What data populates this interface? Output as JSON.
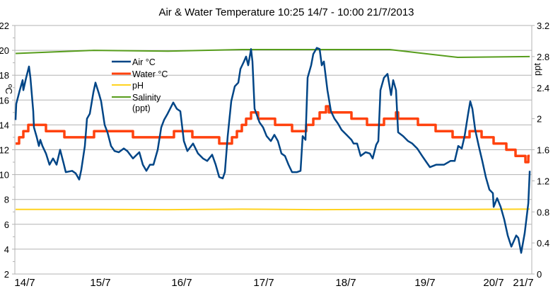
{
  "chart_data": {
    "type": "line",
    "title": "Air & Water Temperature 10:25 14/7 - 10:00 21/7/2013",
    "ylabel_left": "ºC",
    "ylabel_right": "ppt",
    "ylim_left": [
      2,
      22
    ],
    "ylim_right": [
      0,
      3.2
    ],
    "yticks_left": [
      "2",
      "4",
      "6",
      "8",
      "10",
      "12",
      "14",
      "16",
      "18",
      "20",
      "22"
    ],
    "yticks_right": [
      "0",
      "0.4",
      "0.8",
      "1.2",
      "1.6",
      "2",
      "2.4",
      "2.8",
      "3.2"
    ],
    "xticks": [
      "14/7",
      "15/7",
      "16/7",
      "17/7",
      "18/7",
      "19/7",
      "20/7",
      "21/7"
    ],
    "grid": true,
    "legend_position": "top-left inside",
    "colors": {
      "air": "#004586",
      "water": "#ff420e",
      "ph": "#ffd320",
      "salinity": "#579d1c",
      "grid": "#b3b3b3"
    },
    "series": [
      {
        "name": "Air °C",
        "axis": "left",
        "style": "line",
        "points": [
          [
            "14/7 10:39",
            14.4
          ],
          [
            "14/7 10:52",
            15.7
          ],
          [
            "14/7 12:01",
            16.8
          ],
          [
            "14/7 12:56",
            17.6
          ],
          [
            "14/7 13:10",
            16.8
          ],
          [
            "14/7 14:05",
            17.8
          ],
          [
            "14/7 15:00",
            18.7
          ],
          [
            "14/7 15:28",
            17.8
          ],
          [
            "14/7 16:23",
            15.1
          ],
          [
            "14/7 16:36",
            13.8
          ],
          [
            "14/7 17:31",
            13.0
          ],
          [
            "14/7 18:13",
            12.3
          ],
          [
            "14/7 18:40",
            12.8
          ],
          [
            "14/7 19:21",
            12.3
          ],
          [
            "14/7 20:30",
            11.7
          ],
          [
            "14/7 21:39",
            10.8
          ],
          [
            "14/7 22:48",
            11.3
          ],
          [
            "14/7 23:57",
            10.8
          ],
          [
            "15/7 01:05",
            12.0
          ],
          [
            "15/7 02:14",
            10.9
          ],
          [
            "15/7 02:55",
            10.2
          ],
          [
            "15/7 04:59",
            10.3
          ],
          [
            "15/7 06:08",
            10.1
          ],
          [
            "15/7 07:17",
            9.6
          ],
          [
            "15/7 07:58",
            10.4
          ],
          [
            "15/7 09:07",
            12.3
          ],
          [
            "15/7 09:48",
            14.5
          ],
          [
            "15/7 10:43",
            14.9
          ],
          [
            "15/7 11:52",
            16.6
          ],
          [
            "15/7 12:33",
            17.4
          ],
          [
            "15/7 13:42",
            16.5
          ],
          [
            "15/7 14:23",
            15.9
          ],
          [
            "15/7 15:32",
            14.0
          ],
          [
            "15/7 16:27",
            13.4
          ],
          [
            "15/7 17:36",
            12.3
          ],
          [
            "15/7 18:44",
            11.9
          ],
          [
            "15/7 20:07",
            11.8
          ],
          [
            "15/7 21:43",
            12.1
          ],
          [
            "15/7 22:52",
            11.9
          ],
          [
            "16/7 00:42",
            11.3
          ],
          [
            "16/7 02:46",
            11.8
          ],
          [
            "16/7 03:55",
            10.8
          ],
          [
            "16/7 05:03",
            10.3
          ],
          [
            "16/7 06:12",
            10.8
          ],
          [
            "16/7 07:21",
            10.8
          ],
          [
            "16/7 08:44",
            12.0
          ],
          [
            "16/7 09:52",
            13.8
          ],
          [
            "16/7 10:47",
            14.4
          ],
          [
            "16/7 11:56",
            14.9
          ],
          [
            "16/7 13:46",
            15.8
          ],
          [
            "16/7 14:55",
            15.3
          ],
          [
            "16/7 16:04",
            15.1
          ],
          [
            "16/7 17:12",
            12.7
          ],
          [
            "16/7 18:21",
            11.9
          ],
          [
            "16/7 20:11",
            12.5
          ],
          [
            "16/7 21:48",
            11.7
          ],
          [
            "16/7 23:24",
            11.3
          ],
          [
            "17/7 00:46",
            11.1
          ],
          [
            "17/7 02:23",
            11.6
          ],
          [
            "17/7 03:31",
            10.8
          ],
          [
            "17/7 04:40",
            9.8
          ],
          [
            "17/7 05:49",
            9.7
          ],
          [
            "17/7 06:30",
            10.2
          ],
          [
            "17/7 07:25",
            13.1
          ],
          [
            "17/7 08:34",
            15.9
          ],
          [
            "17/7 09:43",
            17.1
          ],
          [
            "17/7 10:52",
            17.4
          ],
          [
            "17/7 11:33",
            18.5
          ],
          [
            "17/7 12:42",
            19.1
          ],
          [
            "17/7 13:23",
            19.5
          ],
          [
            "17/7 14:04",
            18.8
          ],
          [
            "17/7 14:59",
            20.1
          ],
          [
            "17/7 15:27",
            19.1
          ],
          [
            "17/7 16:08",
            15.3
          ],
          [
            "17/7 17:44",
            14.2
          ],
          [
            "17/7 18:53",
            13.8
          ],
          [
            "17/7 20:02",
            13.1
          ],
          [
            "17/7 21:24",
            12.7
          ],
          [
            "17/7 22:33",
            13.2
          ],
          [
            "17/7 23:42",
            12.7
          ],
          [
            "18/7 00:51",
            11.7
          ],
          [
            "18/7 02:00",
            11.5
          ],
          [
            "18/7 03:08",
            10.8
          ],
          [
            "18/7 04:17",
            10.2
          ],
          [
            "18/7 05:53",
            10.2
          ],
          [
            "18/7 07:02",
            10.3
          ],
          [
            "18/7 07:43",
            13.1
          ],
          [
            "18/7 08:38",
            12.8
          ],
          [
            "18/7 09:20",
            17.8
          ],
          [
            "18/7 10:28",
            18.8
          ],
          [
            "18/7 11:10",
            19.7
          ],
          [
            "18/7 12:18",
            20.2
          ],
          [
            "18/7 13:14",
            20.1
          ],
          [
            "18/7 13:55",
            18.8
          ],
          [
            "18/7 14:36",
            19.1
          ],
          [
            "18/7 15:45",
            16.8
          ],
          [
            "18/7 16:54",
            15.1
          ],
          [
            "18/7 18:03",
            14.5
          ],
          [
            "18/7 19:11",
            14.1
          ],
          [
            "18/7 20:20",
            13.6
          ],
          [
            "18/7 21:56",
            13.2
          ],
          [
            "18/7 23:33",
            12.8
          ],
          [
            "19/7 00:14",
            12.5
          ],
          [
            "19/7 01:22",
            12.5
          ],
          [
            "19/7 02:31",
            11.5
          ],
          [
            "19/7 04:08",
            11.8
          ],
          [
            "19/7 05:30",
            11.7
          ],
          [
            "19/7 06:25",
            11.3
          ],
          [
            "19/7 07:34",
            12.4
          ],
          [
            "19/7 08:15",
            12.7
          ],
          [
            "19/7 08:56",
            16.8
          ],
          [
            "19/7 10:05",
            17.8
          ],
          [
            "19/7 11:14",
            18.1
          ],
          [
            "19/7 12:23",
            16.4
          ],
          [
            "19/7 13:04",
            17.6
          ],
          [
            "19/7 13:59",
            16.8
          ],
          [
            "19/7 14:40",
            13.4
          ],
          [
            "19/7 16:16",
            13.1
          ],
          [
            "19/7 17:53",
            12.7
          ],
          [
            "19/7 19:15",
            12.5
          ],
          [
            "19/7 20:52",
            12.1
          ],
          [
            "19/7 22:28",
            11.5
          ],
          [
            "19/7 23:50",
            11.0
          ],
          [
            "20/7 00:59",
            10.6
          ],
          [
            "20/7 03:03",
            10.8
          ],
          [
            "20/7 04:12",
            10.8
          ],
          [
            "20/7 05:34",
            10.8
          ],
          [
            "20/7 07:38",
            11.1
          ],
          [
            "20/7 09:01",
            11.1
          ],
          [
            "20/7 10:09",
            12.3
          ],
          [
            "20/7 11:18",
            12.1
          ],
          [
            "20/7 12:13",
            13.1
          ],
          [
            "20/7 13:22",
            14.9
          ],
          [
            "20/7 14:03",
            15.9
          ],
          [
            "20/7 14:44",
            15.3
          ],
          [
            "20/7 15:40",
            13.6
          ],
          [
            "20/7 16:48",
            12.3
          ],
          [
            "20/7 17:57",
            11.1
          ],
          [
            "20/7 19:06",
            9.8
          ],
          [
            "20/7 20:15",
            8.8
          ],
          [
            "20/7 21:24",
            8.5
          ],
          [
            "20/7 21:38",
            7.4
          ],
          [
            "20/7 22:46",
            8.1
          ],
          [
            "20/7 23:55",
            7.4
          ],
          [
            "21/7 01:04",
            6.4
          ],
          [
            "21/7 02:13",
            5.1
          ],
          [
            "21/7 03:22",
            4.2
          ],
          [
            "21/7 04:58",
            5.1
          ],
          [
            "21/7 05:39",
            4.9
          ],
          [
            "21/7 06:34",
            3.7
          ],
          [
            "21/7 07:43",
            5.3
          ],
          [
            "21/7 08:52",
            7.7
          ],
          [
            "21/7 09:20",
            10.3
          ]
        ]
      },
      {
        "name": "Water °C",
        "axis": "left",
        "style": "step",
        "points": [
          [
            "14/7 10:40",
            12.5
          ],
          [
            "14/7 11:48",
            13
          ],
          [
            "14/7 13:10",
            13.5
          ],
          [
            "14/7 14:46",
            14
          ],
          [
            "14/7 20:30",
            13.5
          ],
          [
            "15/7 02:28",
            13
          ],
          [
            "15/7 12:06",
            13.5
          ],
          [
            "16/7 00:42",
            13
          ],
          [
            "16/7 14:00",
            13.5
          ],
          [
            "16/7 19:58",
            13
          ],
          [
            "17/7 04:40",
            12.5
          ],
          [
            "17/7 08:48",
            13
          ],
          [
            "17/7 10:24",
            13.5
          ],
          [
            "17/7 12:01",
            14
          ],
          [
            "17/7 13:23",
            14.5
          ],
          [
            "17/7 14:59",
            15
          ],
          [
            "17/7 17:17",
            14.5
          ],
          [
            "17/7 22:47",
            14
          ],
          [
            "18/7 04:17",
            13.5
          ],
          [
            "18/7 08:52",
            14
          ],
          [
            "18/7 11:10",
            14.5
          ],
          [
            "18/7 13:14",
            15
          ],
          [
            "18/7 15:17",
            15.5
          ],
          [
            "18/7 16:12",
            15
          ],
          [
            "18/7 23:33",
            14.5
          ],
          [
            "19/7 04:35",
            14
          ],
          [
            "19/7 10:05",
            14.5
          ],
          [
            "19/7 13:59",
            15
          ],
          [
            "19/7 14:40",
            14.5
          ],
          [
            "19/7 21:05",
            14
          ],
          [
            "20/7 02:49",
            13.5
          ],
          [
            "20/7 08:19",
            13
          ],
          [
            "20/7 13:49",
            13.5
          ],
          [
            "20/7 17:43",
            13
          ],
          [
            "20/7 21:37",
            12.5
          ],
          [
            "21/7 01:45",
            12
          ],
          [
            "21/7 04:44",
            11.5
          ],
          [
            "21/7 07:56",
            11
          ],
          [
            "21/7 08:52",
            11.5
          ],
          [
            "21/7 09:20",
            11.5
          ]
        ]
      },
      {
        "name": "pH",
        "axis": "left",
        "style": "line",
        "points": [
          [
            "14/7 10:40",
            7.2
          ],
          [
            "15/7 12:00",
            7.2
          ],
          [
            "16/7 12:00",
            7.18
          ],
          [
            "17/7 12:00",
            7.22
          ],
          [
            "18/7 12:00",
            7.18
          ],
          [
            "19/7 12:00",
            7.2
          ],
          [
            "20/7 12:00",
            7.2
          ],
          [
            "21/7 09:20",
            7.22
          ]
        ]
      },
      {
        "name": "Salinity (ppt)",
        "legend_lines": [
          "Salinity",
          "(ppt)"
        ],
        "axis": "right",
        "style": "line",
        "points": [
          [
            "14/7 10:40",
            2.84
          ],
          [
            "15/7 12:00",
            2.88
          ],
          [
            "16/7 12:00",
            2.87
          ],
          [
            "17/7 12:00",
            2.89
          ],
          [
            "19/7 08:00",
            2.89
          ],
          [
            "19/7 12:00",
            2.89
          ],
          [
            "20/7 10:00",
            2.79
          ],
          [
            "21/7 09:20",
            2.8
          ]
        ]
      }
    ]
  }
}
